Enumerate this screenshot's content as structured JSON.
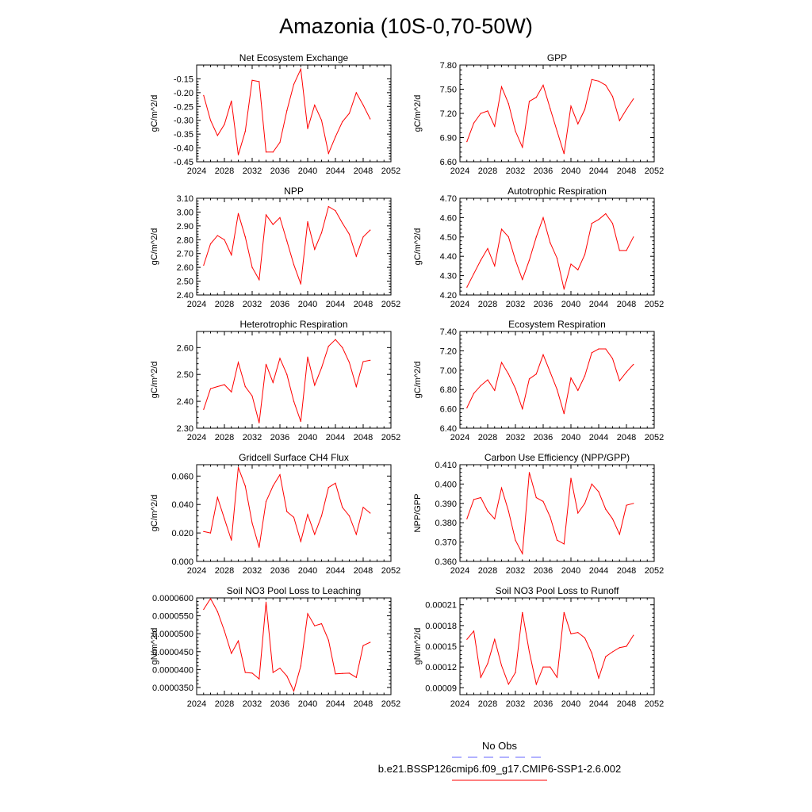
{
  "figure_title": "Amazonia (10S-0,70-50W)",
  "colors": {
    "series": "#ff0000",
    "obs": "#6666ff",
    "axis": "#000000"
  },
  "legend": {
    "obs_label": "No Obs",
    "case_label": "b.e21.BSSP126cmip6.f09_g17.CMIP6-SSP1-2.6.002"
  },
  "chart_data": [
    {
      "type": "line",
      "title": "Net Ecosystem Exchange",
      "ylabel": "gC/m^2/d",
      "xlim": [
        2024,
        2052
      ],
      "xticks": [
        "2024",
        "2028",
        "2032",
        "2036",
        "2040",
        "2044",
        "2048",
        "2052"
      ],
      "ylim": [
        -0.45,
        -0.1
      ],
      "yticks": [
        "-0.45",
        "-0.40",
        "-0.35",
        "-0.30",
        "-0.25",
        "-0.20",
        "-0.15"
      ],
      "x": [
        2025,
        2026,
        2027,
        2028,
        2029,
        2030,
        2031,
        2032,
        2033,
        2034,
        2035,
        2036,
        2037,
        2038,
        2039,
        2040,
        2041,
        2042,
        2043,
        2044,
        2045,
        2046,
        2047,
        2048,
        2049
      ],
      "values": [
        -0.21,
        -0.3,
        -0.355,
        -0.315,
        -0.23,
        -0.425,
        -0.34,
        -0.155,
        -0.16,
        -0.415,
        -0.415,
        -0.38,
        -0.265,
        -0.17,
        -0.115,
        -0.33,
        -0.245,
        -0.3,
        -0.42,
        -0.36,
        -0.305,
        -0.275,
        -0.2,
        -0.245,
        -0.295
      ]
    },
    {
      "type": "line",
      "title": "GPP",
      "ylabel": "gC/m^2/d",
      "xlim": [
        2024,
        2052
      ],
      "xticks": [
        "2024",
        "2028",
        "2032",
        "2036",
        "2040",
        "2044",
        "2048",
        "2052"
      ],
      "ylim": [
        6.6,
        7.8
      ],
      "yticks": [
        "6.60",
        "6.90",
        "7.20",
        "7.50",
        "7.80"
      ],
      "x": [
        2025,
        2026,
        2027,
        2028,
        2029,
        2030,
        2031,
        2032,
        2033,
        2034,
        2035,
        2036,
        2037,
        2038,
        2039,
        2040,
        2041,
        2042,
        2043,
        2044,
        2045,
        2046,
        2047,
        2048,
        2049
      ],
      "values": [
        6.85,
        7.08,
        7.2,
        7.23,
        7.04,
        7.53,
        7.32,
        6.98,
        6.78,
        7.35,
        7.4,
        7.55,
        7.26,
        6.98,
        6.7,
        7.29,
        7.07,
        7.25,
        7.62,
        7.6,
        7.55,
        7.41,
        7.11,
        7.25,
        7.38
      ]
    },
    {
      "type": "line",
      "title": "NPP",
      "ylabel": "gC/m^2/d",
      "xlim": [
        2024,
        2052
      ],
      "xticks": [
        "2024",
        "2028",
        "2032",
        "2036",
        "2040",
        "2044",
        "2048",
        "2052"
      ],
      "ylim": [
        2.4,
        3.1
      ],
      "yticks": [
        "2.40",
        "2.50",
        "2.60",
        "2.70",
        "2.80",
        "2.90",
        "3.00",
        "3.10"
      ],
      "x": [
        2025,
        2026,
        2027,
        2028,
        2029,
        2030,
        2031,
        2032,
        2033,
        2034,
        2035,
        2036,
        2037,
        2038,
        2039,
        2040,
        2041,
        2042,
        2043,
        2044,
        2045,
        2046,
        2047,
        2048,
        2049
      ],
      "values": [
        2.615,
        2.77,
        2.83,
        2.8,
        2.69,
        2.99,
        2.82,
        2.6,
        2.51,
        2.98,
        2.91,
        2.96,
        2.79,
        2.62,
        2.48,
        2.93,
        2.73,
        2.85,
        3.04,
        3.01,
        2.92,
        2.84,
        2.68,
        2.82,
        2.87
      ]
    },
    {
      "type": "line",
      "title": "Autotrophic Respiration",
      "ylabel": "gC/m^2/d",
      "xlim": [
        2024,
        2052
      ],
      "xticks": [
        "2024",
        "2028",
        "2032",
        "2036",
        "2040",
        "2044",
        "2048",
        "2052"
      ],
      "ylim": [
        4.2,
        4.7
      ],
      "yticks": [
        "4.20",
        "4.30",
        "4.40",
        "4.50",
        "4.60",
        "4.70"
      ],
      "x": [
        2025,
        2026,
        2027,
        2028,
        2029,
        2030,
        2031,
        2032,
        2033,
        2034,
        2035,
        2036,
        2037,
        2038,
        2039,
        2040,
        2041,
        2042,
        2043,
        2044,
        2045,
        2046,
        2047,
        2048,
        2049
      ],
      "values": [
        4.24,
        4.31,
        4.38,
        4.44,
        4.35,
        4.54,
        4.5,
        4.38,
        4.28,
        4.38,
        4.5,
        4.6,
        4.47,
        4.39,
        4.23,
        4.36,
        4.33,
        4.41,
        4.57,
        4.59,
        4.62,
        4.57,
        4.43,
        4.43,
        4.5
      ]
    },
    {
      "type": "line",
      "title": "Heterotrophic Respiration",
      "ylabel": "gC/m^2/d",
      "xlim": [
        2024,
        2052
      ],
      "xticks": [
        "2024",
        "2028",
        "2032",
        "2036",
        "2040",
        "2044",
        "2048",
        "2052"
      ],
      "ylim": [
        2.3,
        2.66
      ],
      "yticks": [
        "2.30",
        "2.40",
        "2.50",
        "2.60"
      ],
      "x": [
        2025,
        2026,
        2027,
        2028,
        2029,
        2030,
        2031,
        2032,
        2033,
        2034,
        2035,
        2036,
        2037,
        2038,
        2039,
        2040,
        2041,
        2042,
        2043,
        2044,
        2045,
        2046,
        2047,
        2048,
        2049
      ],
      "values": [
        2.37,
        2.447,
        2.455,
        2.462,
        2.435,
        2.545,
        2.455,
        2.42,
        2.32,
        2.538,
        2.47,
        2.56,
        2.5,
        2.4,
        2.325,
        2.565,
        2.46,
        2.525,
        2.605,
        2.63,
        2.6,
        2.545,
        2.455,
        2.548,
        2.553
      ]
    },
    {
      "type": "line",
      "title": "Ecosystem Respiration",
      "ylabel": "gC/m^2/d",
      "xlim": [
        2024,
        2052
      ],
      "xticks": [
        "2024",
        "2028",
        "2032",
        "2036",
        "2040",
        "2044",
        "2048",
        "2052"
      ],
      "ylim": [
        6.4,
        7.4
      ],
      "yticks": [
        "6.40",
        "6.60",
        "6.80",
        "7.00",
        "7.20",
        "7.40"
      ],
      "x": [
        2025,
        2026,
        2027,
        2028,
        2029,
        2030,
        2031,
        2032,
        2033,
        2034,
        2035,
        2036,
        2037,
        2038,
        2039,
        2040,
        2041,
        2042,
        2043,
        2044,
        2045,
        2046,
        2047,
        2048,
        2049
      ],
      "values": [
        6.61,
        6.76,
        6.84,
        6.9,
        6.79,
        7.08,
        6.96,
        6.81,
        6.6,
        6.91,
        6.96,
        7.16,
        6.98,
        6.8,
        6.55,
        6.92,
        6.79,
        6.94,
        7.18,
        7.22,
        7.22,
        7.12,
        6.89,
        6.98,
        7.06
      ]
    },
    {
      "type": "line",
      "title": "Gridcell Surface CH4 Flux",
      "ylabel": "gC/m^2/d",
      "xlim": [
        2024,
        2052
      ],
      "xticks": [
        "2024",
        "2028",
        "2032",
        "2036",
        "2040",
        "2044",
        "2048",
        "2052"
      ],
      "ylim": [
        0.0,
        0.068
      ],
      "yticks": [
        "0.000",
        "0.020",
        "0.040",
        "0.060"
      ],
      "x": [
        2025,
        2026,
        2027,
        2028,
        2029,
        2030,
        2031,
        2032,
        2033,
        2034,
        2035,
        2036,
        2037,
        2038,
        2039,
        2040,
        2041,
        2042,
        2043,
        2044,
        2045,
        2046,
        2047,
        2048,
        2049
      ],
      "values": [
        0.021,
        0.02,
        0.045,
        0.03,
        0.015,
        0.066,
        0.053,
        0.027,
        0.01,
        0.042,
        0.053,
        0.061,
        0.035,
        0.031,
        0.014,
        0.033,
        0.019,
        0.032,
        0.052,
        0.055,
        0.038,
        0.032,
        0.019,
        0.038,
        0.034
      ]
    },
    {
      "type": "line",
      "title": "Carbon Use Efficiency (NPP/GPP)",
      "ylabel": "NPP/GPP",
      "xlim": [
        2024,
        2052
      ],
      "xticks": [
        "2024",
        "2028",
        "2032",
        "2036",
        "2040",
        "2044",
        "2048",
        "2052"
      ],
      "ylim": [
        0.36,
        0.41
      ],
      "yticks": [
        "0.360",
        "0.370",
        "0.380",
        "0.390",
        "0.400",
        "0.410"
      ],
      "x": [
        2025,
        2026,
        2027,
        2028,
        2029,
        2030,
        2031,
        2032,
        2033,
        2034,
        2035,
        2036,
        2037,
        2038,
        2039,
        2040,
        2041,
        2042,
        2043,
        2044,
        2045,
        2046,
        2047,
        2048,
        2049
      ],
      "values": [
        0.382,
        0.392,
        0.393,
        0.386,
        0.382,
        0.398,
        0.386,
        0.371,
        0.364,
        0.406,
        0.393,
        0.391,
        0.383,
        0.371,
        0.369,
        0.403,
        0.385,
        0.39,
        0.4,
        0.396,
        0.387,
        0.382,
        0.374,
        0.389,
        0.39
      ]
    },
    {
      "type": "line",
      "title": "Soil NO3 Pool Loss to Leaching",
      "ylabel": "gN/m^2/d",
      "xlim": [
        2024,
        2052
      ],
      "xticks": [
        "2024",
        "2028",
        "2032",
        "2036",
        "2040",
        "2044",
        "2048",
        "2052"
      ],
      "ylim": [
        3.3e-05,
        6e-05
      ],
      "yticks": [
        "0.0000350",
        "0.0000400",
        "0.0000450",
        "0.0000500",
        "0.0000550",
        "0.0000600"
      ],
      "x": [
        2025,
        2026,
        2027,
        2028,
        2029,
        2030,
        2031,
        2032,
        2033,
        2034,
        2035,
        2036,
        2037,
        2038,
        2039,
        2040,
        2041,
        2042,
        2043,
        2044,
        2045,
        2046,
        2047,
        2048,
        2049
      ],
      "values": [
        5.68e-05,
        5.98e-05,
        5.62e-05,
        5.08e-05,
        4.45e-05,
        4.8e-05,
        3.92e-05,
        3.9e-05,
        3.74e-05,
        5.88e-05,
        3.92e-05,
        4.04e-05,
        3.82e-05,
        3.4e-05,
        4.1e-05,
        5.56e-05,
        5.22e-05,
        5.28e-05,
        4.82e-05,
        3.88e-05,
        3.89e-05,
        3.9e-05,
        3.78e-05,
        4.67e-05,
        4.76e-05
      ]
    },
    {
      "type": "line",
      "title": "Soil NO3 Pool Loss to Runoff",
      "ylabel": "gN/m^2/d",
      "xlim": [
        2024,
        2052
      ],
      "xticks": [
        "2024",
        "2028",
        "2032",
        "2036",
        "2040",
        "2044",
        "2048",
        "2052"
      ],
      "ylim": [
        8e-05,
        0.00022
      ],
      "yticks": [
        "0.00009",
        "0.00012",
        "0.00015",
        "0.00018",
        "0.00021"
      ],
      "x": [
        2025,
        2026,
        2027,
        2028,
        2029,
        2030,
        2031,
        2032,
        2033,
        2034,
        2035,
        2036,
        2037,
        2038,
        2039,
        2040,
        2041,
        2042,
        2043,
        2044,
        2045,
        2046,
        2047,
        2048,
        2049
      ],
      "values": [
        0.00016,
        0.000172,
        0.000105,
        0.000125,
        0.00016,
        0.000122,
        9.5e-05,
        0.000112,
        0.000199,
        0.000142,
        9.5e-05,
        0.00012,
        0.00012,
        0.000105,
        0.000199,
        0.000168,
        0.00017,
        0.000162,
        0.00014,
        0.000104,
        0.000135,
        0.000142,
        0.000148,
        0.00015,
        0.000166
      ]
    }
  ]
}
